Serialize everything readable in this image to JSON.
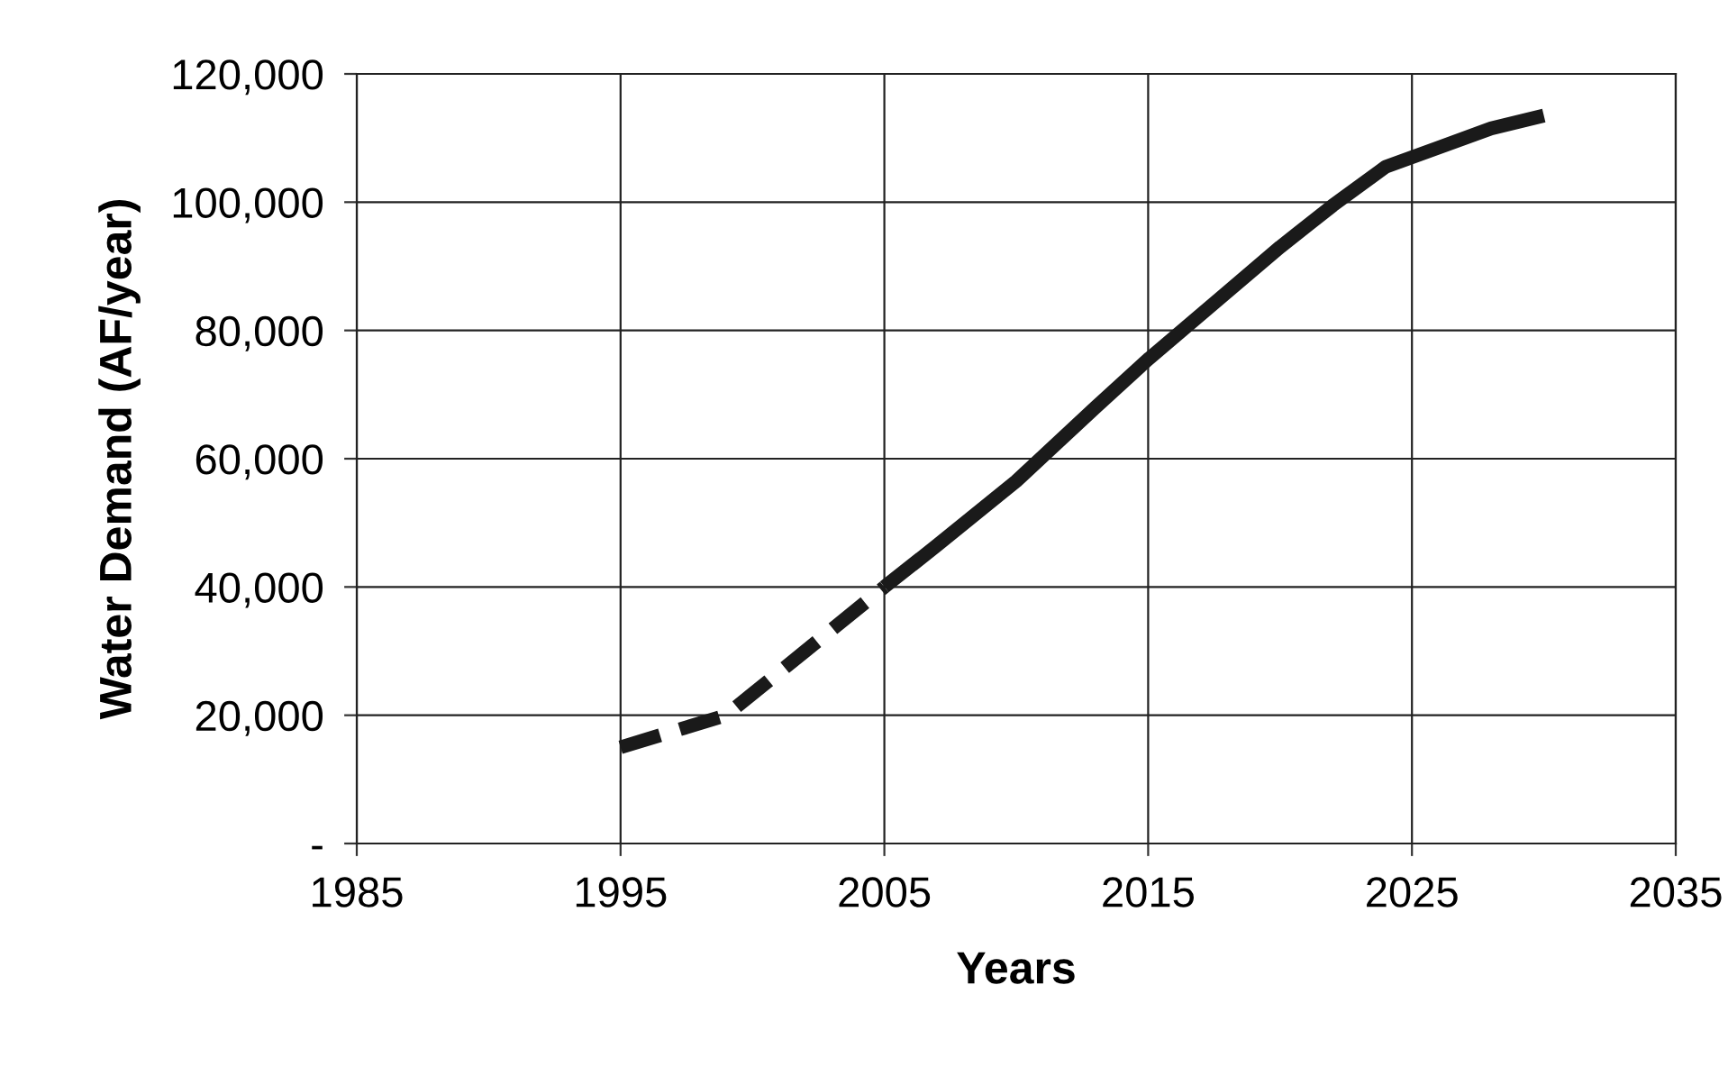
{
  "chart_data": {
    "type": "line",
    "xlabel": "Years",
    "ylabel": "Water Demand (AF/year)",
    "series": [
      {
        "color": "#1a1a1a",
        "line_style": "dashed",
        "x": [
          1995,
          1997,
          1999,
          2002,
          2005
        ],
        "values": [
          15000,
          17500,
          20000,
          30000,
          40000
        ]
      },
      {
        "color": "#1a1a1a",
        "line_style": "solid",
        "x": [
          2005,
          2007,
          2010,
          2013,
          2015,
          2018,
          2020,
          2022,
          2024,
          2026,
          2028,
          2030
        ],
        "values": [
          40000,
          46500,
          56500,
          68000,
          75500,
          86000,
          93000,
          99500,
          105500,
          108500,
          111500,
          113500
        ]
      }
    ],
    "xlim": [
      1985,
      2035
    ],
    "xticks": [
      1985,
      1995,
      2005,
      2015,
      2025,
      2035
    ],
    "ylim": [
      0,
      120000
    ],
    "yticks": [
      {
        "value": 0,
        "label": "-"
      },
      {
        "value": 20000,
        "label": "20,000"
      },
      {
        "value": 40000,
        "label": "40,000"
      },
      {
        "value": 60000,
        "label": "60,000"
      },
      {
        "value": 80000,
        "label": "80,000"
      },
      {
        "value": 100000,
        "label": "100,000"
      },
      {
        "value": 120000,
        "label": "120,000"
      }
    ],
    "grid": true,
    "marker": "none"
  }
}
